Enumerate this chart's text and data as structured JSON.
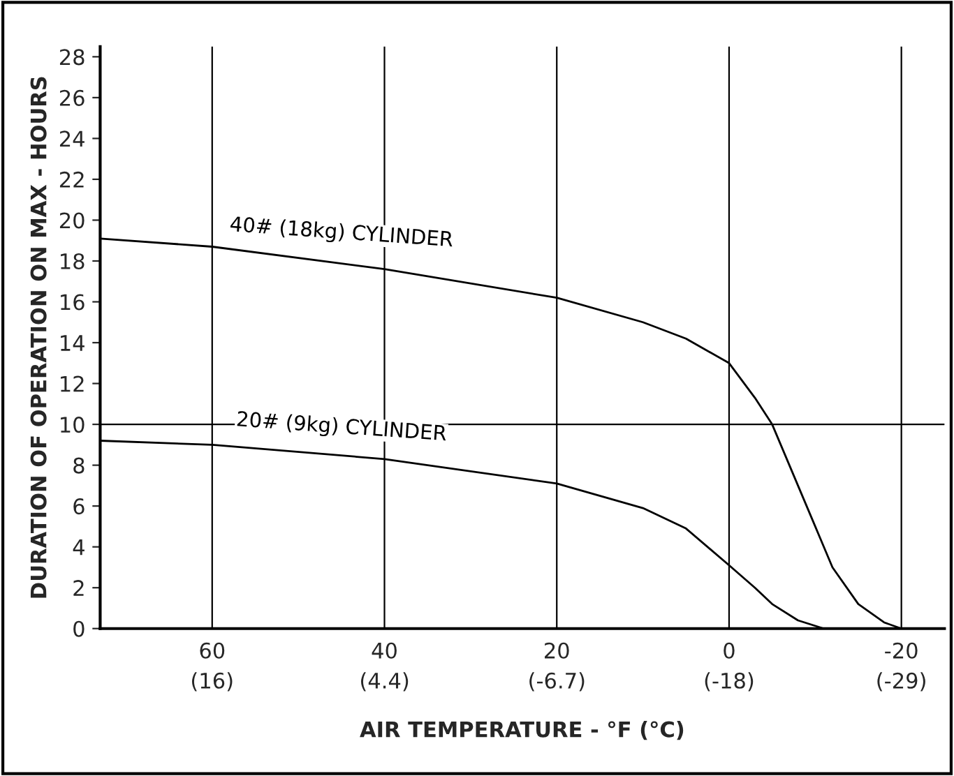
{
  "chart_data": {
    "type": "line",
    "xlabel": "AIR TEMPERATURE - °F (°C)",
    "ylabel": "DURATION OF OPERATION ON MAX - HOURS",
    "series": [
      {
        "name": "40# (18kg) CYLINDER",
        "color": "#000000",
        "x": [
          73,
          60,
          40,
          20,
          10,
          5,
          0,
          -3,
          -5,
          -8,
          -10,
          -12,
          -15,
          -18,
          -20
        ],
        "values": [
          19.1,
          18.7,
          17.6,
          16.2,
          15.0,
          14.2,
          13.0,
          11.3,
          10.0,
          7.0,
          5.0,
          3.0,
          1.2,
          0.3,
          0.0
        ]
      },
      {
        "name": "20# (9kg) CYLINDER",
        "color": "#000000",
        "x": [
          73,
          60,
          40,
          20,
          10,
          5,
          0,
          -3,
          -5,
          -8,
          -11
        ],
        "values": [
          9.2,
          9.0,
          8.3,
          7.1,
          5.9,
          4.9,
          3.1,
          2.0,
          1.2,
          0.4,
          0.0
        ]
      }
    ],
    "xlim": [
      73,
      -25
    ],
    "ylim": [
      0,
      28.5
    ],
    "xticks": [
      60,
      40,
      20,
      0,
      -20
    ],
    "x2lim": [
      22.78,
      -31.67
    ],
    "x2ticks": [
      {
        "value": 15.56,
        "label": "(16)"
      },
      {
        "value": 4.44,
        "label": "(4.4)"
      },
      {
        "value": -6.67,
        "label": "(-6.7)"
      },
      {
        "value": -17.78,
        "label": "(-18)"
      },
      {
        "value": -28.89,
        "label": "(-29)"
      }
    ],
    "yticks": [
      0,
      2,
      4,
      6,
      8,
      10,
      12,
      14,
      16,
      18,
      20,
      22,
      24,
      26,
      28
    ],
    "grid": "x",
    "legend": false,
    "marker": "none",
    "line_style": "solid",
    "ref_lines": [
      {
        "axis": "y",
        "value": 10,
        "color": "#000000"
      }
    ]
  }
}
